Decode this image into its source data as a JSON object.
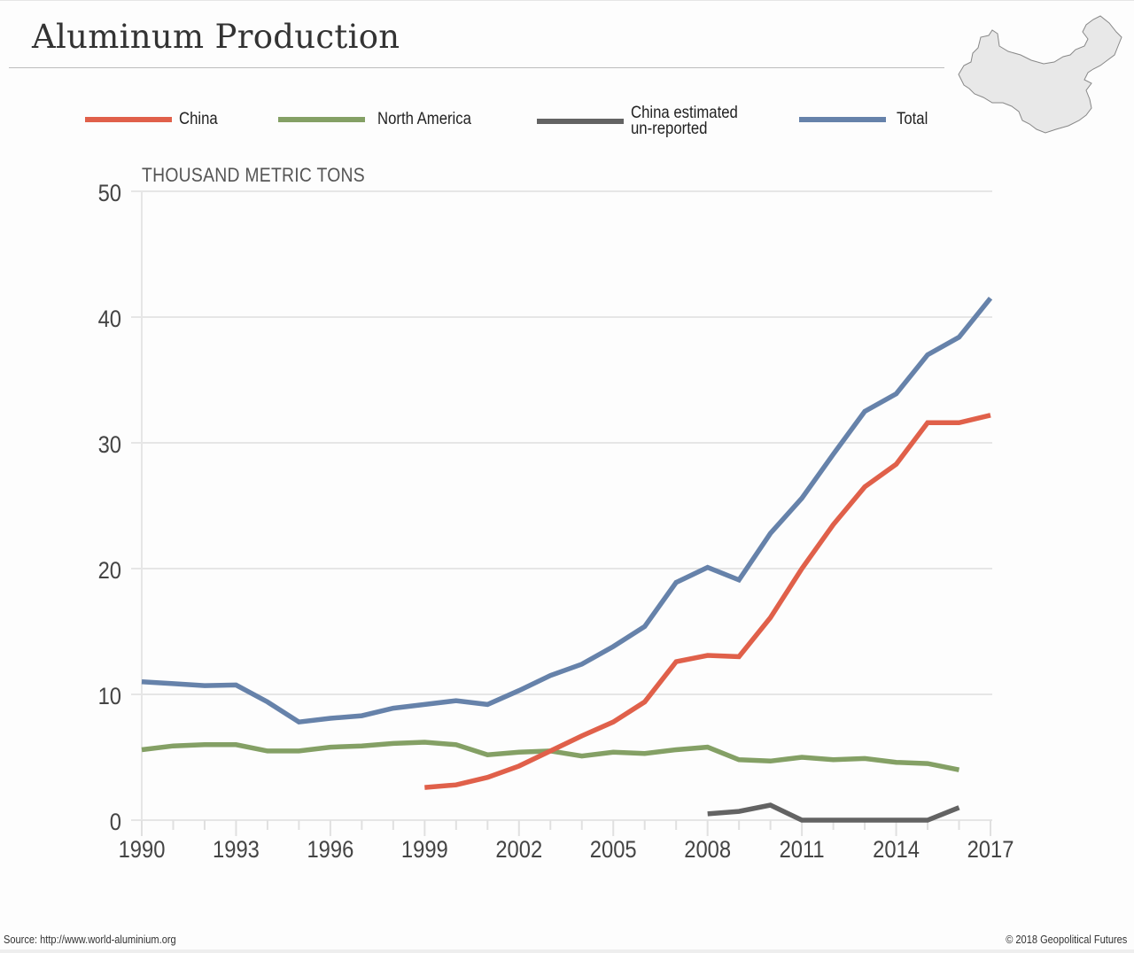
{
  "title": "Aluminum Production",
  "legend": [
    {
      "label": "China",
      "color": "#e0604a"
    },
    {
      "label": "North America",
      "color": "#84a065"
    },
    {
      "label": "China estimated\nun-reported",
      "color": "#636363"
    },
    {
      "label": "Total",
      "color": "#6682aa"
    }
  ],
  "map_icon": "china-map-icon",
  "footer": {
    "source": "Source: http://www.world-aluminium.org",
    "copyright": "© 2018 Geopolitical Futures"
  },
  "chart_data": {
    "type": "line",
    "title": "Aluminum Production",
    "xlabel": "",
    "ylabel": "THOUSAND METRIC TONS",
    "xlim": [
      1990,
      2017
    ],
    "ylim": [
      0,
      50
    ],
    "grid": true,
    "legend_position": "top",
    "x_ticks": [
      "1990",
      "1993",
      "1996",
      "1999",
      "2002",
      "2005",
      "2008",
      "2011",
      "2014",
      "2017"
    ],
    "y_ticks": [
      "0",
      "10",
      "20",
      "30",
      "40",
      "50"
    ],
    "series": [
      {
        "name": "Total",
        "color": "#6682aa",
        "x": [
          1990,
          1991,
          1992,
          1993,
          1994,
          1995,
          1996,
          1997,
          1998,
          1999,
          2000,
          2001,
          2002,
          2003,
          2004,
          2005,
          2006,
          2007,
          2008,
          2009,
          2010,
          2011,
          2012,
          2013,
          2014,
          2015,
          2016,
          2017
        ],
        "values": [
          11.0,
          10.85,
          10.7,
          10.75,
          9.4,
          7.8,
          8.1,
          8.3,
          8.9,
          9.2,
          9.5,
          9.2,
          10.3,
          11.5,
          12.4,
          13.8,
          15.4,
          18.9,
          20.1,
          19.1,
          22.8,
          25.6,
          29.1,
          32.5,
          33.9,
          37.0,
          38.4,
          41.5
        ]
      },
      {
        "name": "North America",
        "color": "#84a065",
        "x": [
          1990,
          1991,
          1992,
          1993,
          1994,
          1995,
          1996,
          1997,
          1998,
          1999,
          2000,
          2001,
          2002,
          2003,
          2004,
          2005,
          2006,
          2007,
          2008,
          2009,
          2010,
          2011,
          2012,
          2013,
          2014,
          2015,
          2016
        ],
        "values": [
          5.6,
          5.9,
          6.0,
          6.0,
          5.5,
          5.5,
          5.8,
          5.9,
          6.1,
          6.2,
          6.0,
          5.2,
          5.4,
          5.5,
          5.1,
          5.4,
          5.3,
          5.6,
          5.8,
          4.8,
          4.7,
          5.0,
          4.8,
          4.9,
          4.6,
          4.5,
          4.0
        ]
      },
      {
        "name": "China",
        "color": "#e0604a",
        "x": [
          1999,
          2000,
          2001,
          2002,
          2003,
          2004,
          2005,
          2006,
          2007,
          2008,
          2009,
          2010,
          2011,
          2012,
          2013,
          2014,
          2015,
          2016,
          2017
        ],
        "values": [
          2.6,
          2.8,
          3.4,
          4.3,
          5.5,
          6.7,
          7.8,
          9.4,
          12.6,
          13.1,
          13.0,
          16.1,
          20.0,
          23.5,
          26.5,
          28.3,
          31.6,
          31.6,
          32.2
        ]
      },
      {
        "name": "China estimated un-reported",
        "color": "#636363",
        "x": [
          2008,
          2009,
          2010,
          2011,
          2012,
          2013,
          2014,
          2015,
          2016
        ],
        "values": [
          0.5,
          0.7,
          1.2,
          0,
          0,
          0,
          0,
          0,
          1.0
        ]
      }
    ]
  }
}
